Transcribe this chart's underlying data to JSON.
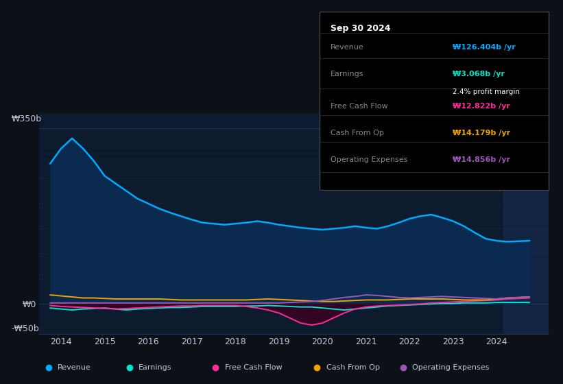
{
  "bg_color": "#0d1117",
  "plot_bg_color": "#0d1b2e",
  "grid_color": "#1e3a5f",
  "text_color": "#c0c8d8",
  "revenue_color": "#00aaff",
  "earnings_color": "#00e5cc",
  "fcf_color": "#ff2d9b",
  "cashop_color": "#f0a500",
  "opex_color": "#9b59b6",
  "fill_revenue_color": "#0a2a50",
  "fill_fcf_color": "#3d0020",
  "legend_bg": "#111111",
  "revenue_x": [
    2013.75,
    2014.0,
    2014.25,
    2014.5,
    2014.75,
    2015.0,
    2015.25,
    2015.5,
    2015.75,
    2016.0,
    2016.25,
    2016.5,
    2016.75,
    2017.0,
    2017.25,
    2017.5,
    2017.75,
    2018.0,
    2018.25,
    2018.5,
    2018.75,
    2019.0,
    2019.25,
    2019.5,
    2019.75,
    2020.0,
    2020.25,
    2020.5,
    2020.75,
    2021.0,
    2021.25,
    2021.5,
    2021.75,
    2022.0,
    2022.25,
    2022.5,
    2022.75,
    2023.0,
    2023.25,
    2023.5,
    2023.75,
    2024.0,
    2024.25,
    2024.5,
    2024.75
  ],
  "revenue_y": [
    280,
    310,
    330,
    310,
    285,
    255,
    240,
    225,
    210,
    200,
    190,
    182,
    175,
    168,
    162,
    160,
    158,
    160,
    162,
    165,
    162,
    158,
    155,
    152,
    150,
    148,
    150,
    152,
    155,
    152,
    150,
    155,
    162,
    170,
    175,
    178,
    172,
    165,
    155,
    142,
    130,
    126,
    124,
    125,
    126
  ],
  "earnings_x": [
    2013.75,
    2014.0,
    2014.25,
    2014.5,
    2014.75,
    2015.0,
    2015.25,
    2015.5,
    2015.75,
    2016.0,
    2016.25,
    2016.5,
    2016.75,
    2017.0,
    2017.25,
    2017.5,
    2017.75,
    2018.0,
    2018.25,
    2018.5,
    2018.75,
    2019.0,
    2019.25,
    2019.5,
    2019.75,
    2020.0,
    2020.25,
    2020.5,
    2020.75,
    2021.0,
    2021.25,
    2021.5,
    2021.75,
    2022.0,
    2022.25,
    2022.5,
    2022.75,
    2023.0,
    2023.25,
    2023.5,
    2023.75,
    2024.0,
    2024.25,
    2024.5,
    2024.75
  ],
  "earnings_y": [
    -8,
    -10,
    -12,
    -10,
    -9,
    -8,
    -10,
    -12,
    -10,
    -9,
    -8,
    -7,
    -7,
    -6,
    -5,
    -5,
    -5,
    -5,
    -4,
    -4,
    -3,
    -4,
    -5,
    -6,
    -6,
    -8,
    -10,
    -12,
    -10,
    -8,
    -6,
    -4,
    -3,
    -2,
    -1,
    0,
    1,
    1,
    2,
    2,
    2,
    3,
    3,
    3,
    3
  ],
  "fcf_x": [
    2013.75,
    2014.0,
    2014.25,
    2014.5,
    2014.75,
    2015.0,
    2015.25,
    2015.5,
    2015.75,
    2016.0,
    2016.25,
    2016.5,
    2016.75,
    2017.0,
    2017.25,
    2017.5,
    2017.75,
    2018.0,
    2018.25,
    2018.5,
    2018.75,
    2019.0,
    2019.25,
    2019.5,
    2019.75,
    2020.0,
    2020.25,
    2020.5,
    2020.75,
    2021.0,
    2021.25,
    2021.5,
    2021.75,
    2022.0,
    2022.25,
    2022.5,
    2022.75,
    2023.0,
    2023.25,
    2023.5,
    2023.75,
    2024.0,
    2024.25,
    2024.5,
    2024.75
  ],
  "fcf_y": [
    -3,
    -5,
    -6,
    -7,
    -8,
    -9,
    -10,
    -9,
    -8,
    -7,
    -6,
    -5,
    -4,
    -4,
    -3,
    -3,
    -3,
    -3,
    -5,
    -8,
    -12,
    -18,
    -28,
    -38,
    -42,
    -38,
    -28,
    -18,
    -10,
    -6,
    -4,
    -3,
    -2,
    -1,
    0,
    2,
    3,
    4,
    5,
    6,
    7,
    8,
    10,
    11,
    12
  ],
  "cashop_x": [
    2013.75,
    2014.0,
    2014.25,
    2014.5,
    2014.75,
    2015.0,
    2015.25,
    2015.5,
    2015.75,
    2016.0,
    2016.25,
    2016.5,
    2016.75,
    2017.0,
    2017.25,
    2017.5,
    2017.75,
    2018.0,
    2018.25,
    2018.5,
    2018.75,
    2019.0,
    2019.25,
    2019.5,
    2019.75,
    2020.0,
    2020.25,
    2020.5,
    2020.75,
    2021.0,
    2021.25,
    2021.5,
    2021.75,
    2022.0,
    2022.25,
    2022.5,
    2022.75,
    2023.0,
    2023.25,
    2023.5,
    2023.75,
    2024.0,
    2024.25,
    2024.5,
    2024.75
  ],
  "cashop_y": [
    18,
    16,
    14,
    12,
    12,
    11,
    10,
    10,
    10,
    10,
    10,
    9,
    8,
    8,
    8,
    8,
    8,
    8,
    8,
    9,
    10,
    9,
    8,
    7,
    6,
    5,
    5,
    6,
    7,
    8,
    8,
    8,
    9,
    10,
    10,
    10,
    10,
    9,
    8,
    8,
    8,
    10,
    12,
    13,
    14
  ],
  "opex_x": [
    2013.75,
    2014.0,
    2014.25,
    2014.5,
    2014.75,
    2015.0,
    2015.25,
    2015.5,
    2015.75,
    2016.0,
    2016.25,
    2016.5,
    2016.75,
    2017.0,
    2017.25,
    2017.5,
    2017.75,
    2018.0,
    2018.25,
    2018.5,
    2018.75,
    2019.0,
    2019.25,
    2019.5,
    2019.75,
    2020.0,
    2020.25,
    2020.5,
    2020.75,
    2021.0,
    2021.25,
    2021.5,
    2021.75,
    2022.0,
    2022.25,
    2022.5,
    2022.75,
    2023.0,
    2023.25,
    2023.5,
    2023.75,
    2024.0,
    2024.25,
    2024.5,
    2024.75
  ],
  "opex_y": [
    2,
    2,
    2,
    2,
    2,
    2,
    2,
    2,
    2,
    2,
    2,
    2,
    2,
    2,
    2,
    2,
    2,
    2,
    2,
    2,
    2,
    2,
    3,
    4,
    5,
    7,
    10,
    13,
    15,
    18,
    17,
    15,
    13,
    12,
    13,
    14,
    15,
    14,
    13,
    12,
    11,
    10,
    12,
    13,
    14
  ],
  "xtick_positions": [
    2014,
    2015,
    2016,
    2017,
    2018,
    2019,
    2020,
    2021,
    2022,
    2023,
    2024
  ],
  "xtick_labels": [
    "2014",
    "2015",
    "2016",
    "2017",
    "2018",
    "2019",
    "2020",
    "2021",
    "2022",
    "2023",
    "2024"
  ],
  "legend_items": [
    {
      "color": "#00aaff",
      "label": "Revenue"
    },
    {
      "color": "#00e5cc",
      "label": "Earnings"
    },
    {
      "color": "#ff2d9b",
      "label": "Free Cash Flow"
    },
    {
      "color": "#f0a500",
      "label": "Cash From Op"
    },
    {
      "color": "#9b59b6",
      "label": "Operating Expenses"
    }
  ],
  "info_rows": [
    {
      "label": "Revenue",
      "value": "₩126.404b /yr",
      "color": "#00aaff",
      "sublabel": null
    },
    {
      "label": "Earnings",
      "value": "₩3.068b /yr",
      "color": "#00e5cc",
      "sublabel": "2.4% profit margin"
    },
    {
      "label": "Free Cash Flow",
      "value": "₩12.822b /yr",
      "color": "#ff2d9b",
      "sublabel": null
    },
    {
      "label": "Cash From Op",
      "value": "₩14.179b /yr",
      "color": "#f0a500",
      "sublabel": null
    },
    {
      "label": "Operating Expenses",
      "value": "₩14.856b /yr",
      "color": "#9b59b6",
      "sublabel": null
    }
  ],
  "info_title": "Sep 30 2024"
}
